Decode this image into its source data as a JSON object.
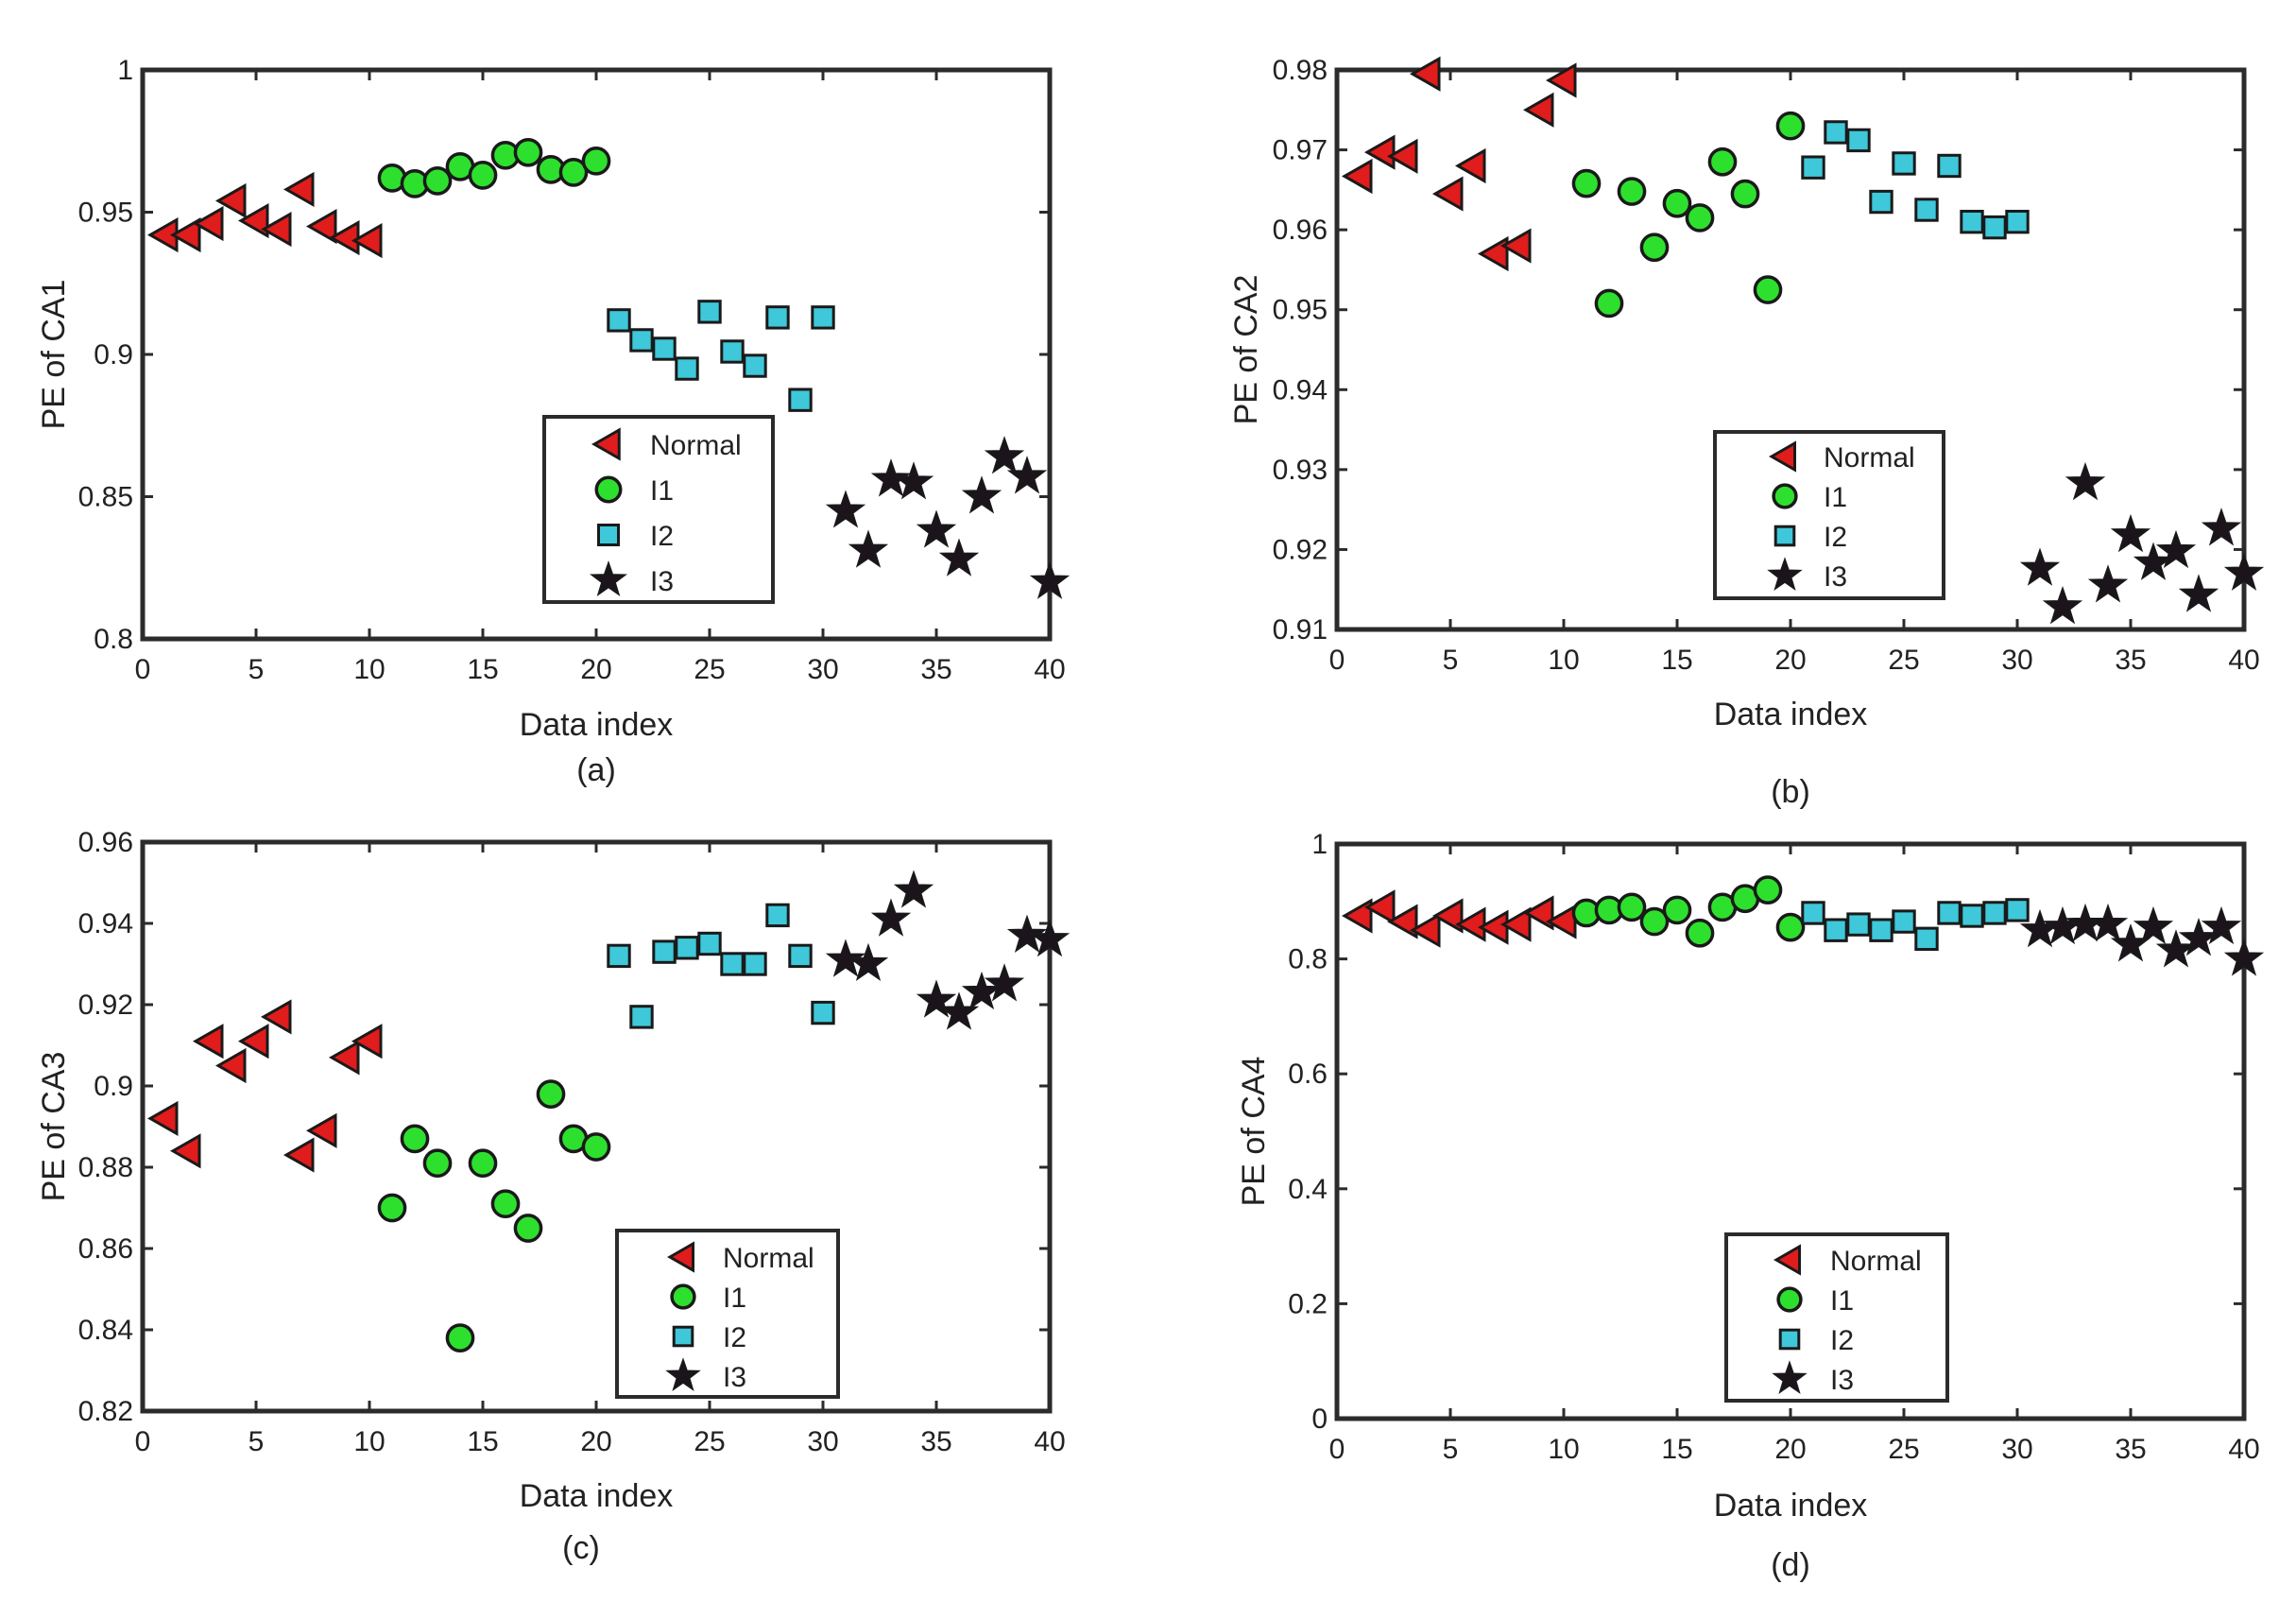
{
  "colors": {
    "normal_fill": "#e01c1c",
    "i1_fill": "#2ee02e",
    "i2_fill": "#3ec8da",
    "i3_fill": "#1b141a",
    "marker_edge": "#1a1a1a",
    "axis": "#2b2b2b",
    "text": "#222222"
  },
  "legend_markers": {
    "Normal": "triangle-left",
    "I1": "circle",
    "I2": "square",
    "I3": "star"
  },
  "chart_data": [
    {
      "type": "scatter",
      "panel_label": "(a)",
      "xlabel": "Data index",
      "ylabel": "PE of CA1",
      "xlim": [
        0,
        40
      ],
      "ylim": [
        0.8,
        1
      ],
      "xticks": [
        "0",
        "5",
        "10",
        "15",
        "20",
        "25",
        "30",
        "35",
        "40"
      ],
      "yticks": [
        "0.8",
        "0.85",
        "0.9",
        "0.95",
        "1"
      ],
      "legend": [
        "Normal",
        "I1",
        "I2",
        "I3"
      ],
      "legend_position": "lower-middle",
      "series": [
        {
          "name": "Normal",
          "marker": "triangle-left",
          "x": [
            1,
            2,
            3,
            4,
            5,
            6,
            7,
            8,
            9,
            10
          ],
          "y": [
            0.942,
            0.942,
            0.946,
            0.954,
            0.947,
            0.944,
            0.958,
            0.945,
            0.941,
            0.94
          ]
        },
        {
          "name": "I1",
          "marker": "circle",
          "x": [
            11,
            12,
            13,
            14,
            15,
            16,
            17,
            18,
            19,
            20
          ],
          "y": [
            0.962,
            0.96,
            0.961,
            0.966,
            0.963,
            0.97,
            0.971,
            0.965,
            0.964,
            0.968
          ]
        },
        {
          "name": "I2",
          "marker": "square",
          "x": [
            21,
            22,
            23,
            24,
            25,
            26,
            27,
            28,
            29,
            30
          ],
          "y": [
            0.912,
            0.905,
            0.902,
            0.895,
            0.915,
            0.901,
            0.896,
            0.913,
            0.884,
            0.913
          ]
        },
        {
          "name": "I3",
          "marker": "star",
          "x": [
            31,
            32,
            33,
            34,
            35,
            36,
            37,
            38,
            39,
            40
          ],
          "y": [
            0.845,
            0.831,
            0.856,
            0.855,
            0.838,
            0.828,
            0.85,
            0.864,
            0.857,
            0.82
          ]
        }
      ]
    },
    {
      "type": "scatter",
      "panel_label": "(b)",
      "xlabel": "Data index",
      "ylabel": "PE of CA2",
      "xlim": [
        0,
        40
      ],
      "ylim": [
        0.91,
        0.98
      ],
      "xticks": [
        "0",
        "5",
        "10",
        "15",
        "20",
        "25",
        "30",
        "35",
        "40"
      ],
      "yticks": [
        "0.91",
        "0.92",
        "0.93",
        "0.94",
        "0.95",
        "0.96",
        "0.97",
        "0.98"
      ],
      "legend": [
        "Normal",
        "I1",
        "I2",
        "I3"
      ],
      "legend_position": "lower-middle",
      "series": [
        {
          "name": "Normal",
          "marker": "triangle-left",
          "x": [
            1,
            2,
            3,
            4,
            5,
            6,
            7,
            8,
            9,
            10
          ],
          "y": [
            0.9667,
            0.9697,
            0.9692,
            0.9795,
            0.9645,
            0.968,
            0.957,
            0.958,
            0.975,
            0.9787
          ]
        },
        {
          "name": "I1",
          "marker": "circle",
          "x": [
            11,
            12,
            13,
            14,
            15,
            16,
            17,
            18,
            19,
            20
          ],
          "y": [
            0.9658,
            0.9508,
            0.9648,
            0.9578,
            0.9633,
            0.9615,
            0.9685,
            0.9645,
            0.9525,
            0.973
          ]
        },
        {
          "name": "I2",
          "marker": "square",
          "x": [
            21,
            22,
            23,
            24,
            25,
            26,
            27,
            28,
            29,
            30
          ],
          "y": [
            0.9678,
            0.9722,
            0.9712,
            0.9635,
            0.9683,
            0.9625,
            0.968,
            0.961,
            0.9603,
            0.961
          ]
        },
        {
          "name": "I3",
          "marker": "star",
          "x": [
            31,
            32,
            33,
            34,
            35,
            36,
            37,
            38,
            39,
            40
          ],
          "y": [
            0.9176,
            0.9128,
            0.9283,
            0.9155,
            0.9218,
            0.9183,
            0.9198,
            0.9143,
            0.9226,
            0.917
          ]
        }
      ]
    },
    {
      "type": "scatter",
      "panel_label": "(c)",
      "xlabel": "Data index",
      "ylabel": "PE of CA3",
      "xlim": [
        0,
        40
      ],
      "ylim": [
        0.82,
        0.96
      ],
      "xticks": [
        "0",
        "5",
        "10",
        "15",
        "20",
        "25",
        "30",
        "35",
        "40"
      ],
      "yticks": [
        "0.82",
        "0.84",
        "0.86",
        "0.88",
        "0.9",
        "0.92",
        "0.94",
        "0.96"
      ],
      "legend": [
        "Normal",
        "I1",
        "I2",
        "I3"
      ],
      "legend_position": "lower-middle",
      "series": [
        {
          "name": "Normal",
          "marker": "triangle-left",
          "x": [
            1,
            2,
            3,
            4,
            5,
            6,
            7,
            8,
            9,
            10
          ],
          "y": [
            0.892,
            0.884,
            0.911,
            0.905,
            0.911,
            0.917,
            0.883,
            0.889,
            0.907,
            0.911
          ]
        },
        {
          "name": "I1",
          "marker": "circle",
          "x": [
            11,
            12,
            13,
            14,
            15,
            16,
            17,
            18,
            19,
            20
          ],
          "y": [
            0.87,
            0.887,
            0.881,
            0.838,
            0.881,
            0.871,
            0.865,
            0.898,
            0.887,
            0.885
          ]
        },
        {
          "name": "I2",
          "marker": "square",
          "x": [
            21,
            22,
            23,
            24,
            25,
            26,
            27,
            28,
            29,
            30
          ],
          "y": [
            0.932,
            0.917,
            0.933,
            0.934,
            0.935,
            0.93,
            0.93,
            0.942,
            0.932,
            0.918
          ]
        },
        {
          "name": "I3",
          "marker": "star",
          "x": [
            31,
            32,
            33,
            34,
            35,
            36,
            37,
            38,
            39,
            40
          ],
          "y": [
            0.931,
            0.93,
            0.941,
            0.948,
            0.921,
            0.918,
            0.923,
            0.925,
            0.937,
            0.936
          ]
        }
      ]
    },
    {
      "type": "scatter",
      "panel_label": "(d)",
      "xlabel": "Data index",
      "ylabel": "PE of CA4",
      "xlim": [
        0,
        40
      ],
      "ylim": [
        0,
        1
      ],
      "xticks": [
        "0",
        "5",
        "10",
        "15",
        "20",
        "25",
        "30",
        "35",
        "40"
      ],
      "yticks": [
        "0",
        "0.2",
        "0.4",
        "0.6",
        "0.8",
        "1"
      ],
      "legend": [
        "Normal",
        "I1",
        "I2",
        "I3"
      ],
      "legend_position": "lower-middle",
      "series": [
        {
          "name": "Normal",
          "marker": "triangle-left",
          "x": [
            1,
            2,
            3,
            4,
            5,
            6,
            7,
            8,
            9,
            10
          ],
          "y": [
            0.875,
            0.89,
            0.865,
            0.85,
            0.875,
            0.86,
            0.855,
            0.86,
            0.88,
            0.865
          ]
        },
        {
          "name": "I1",
          "marker": "circle",
          "x": [
            11,
            12,
            13,
            14,
            15,
            16,
            17,
            18,
            19,
            20
          ],
          "y": [
            0.88,
            0.885,
            0.89,
            0.865,
            0.885,
            0.845,
            0.89,
            0.905,
            0.92,
            0.855
          ]
        },
        {
          "name": "I2",
          "marker": "square",
          "x": [
            21,
            22,
            23,
            24,
            25,
            26,
            27,
            28,
            29,
            30
          ],
          "y": [
            0.88,
            0.85,
            0.86,
            0.85,
            0.865,
            0.835,
            0.88,
            0.875,
            0.88,
            0.885
          ]
        },
        {
          "name": "I3",
          "marker": "star",
          "x": [
            31,
            32,
            33,
            34,
            35,
            36,
            37,
            38,
            39,
            40
          ],
          "y": [
            0.85,
            0.855,
            0.86,
            0.86,
            0.825,
            0.855,
            0.815,
            0.835,
            0.855,
            0.8
          ]
        }
      ]
    }
  ]
}
